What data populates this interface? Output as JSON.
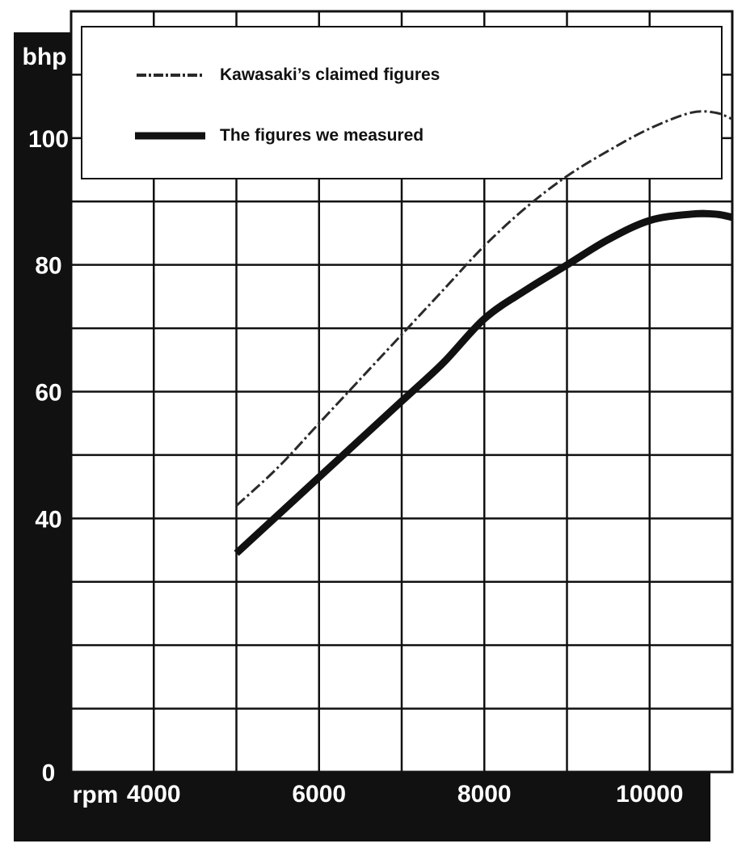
{
  "chart_data": {
    "type": "line",
    "xlabel": "rpm",
    "ylabel": "bhp",
    "xlim": [
      3000,
      11000
    ],
    "ylim": [
      0,
      120
    ],
    "x_ticks": [
      4000,
      6000,
      8000,
      10000
    ],
    "x_tick_labels": [
      "4000",
      "6000",
      "8000",
      "10000"
    ],
    "y_ticks": [
      0,
      40,
      60,
      80,
      100
    ],
    "y_tick_labels": [
      "0",
      "40",
      "60",
      "80",
      "100"
    ],
    "grid": true,
    "legend_position": "top",
    "series": [
      {
        "name": "Kawasaki’s claimed figures",
        "style": "dashed",
        "color": "#2a2a2a",
        "x": [
          5000,
          5500,
          6000,
          6500,
          7000,
          7500,
          8000,
          8500,
          9000,
          9500,
          10000,
          10500,
          10800,
          11000
        ],
        "y": [
          42,
          48,
          55,
          62,
          69,
          76,
          83,
          89,
          94,
          98,
          101.5,
          104,
          104,
          103
        ]
      },
      {
        "name": "The figures we measured",
        "style": "solid",
        "color": "#111111",
        "x": [
          5000,
          5500,
          6000,
          6500,
          7000,
          7500,
          8000,
          8500,
          9000,
          9500,
          10000,
          10500,
          10800,
          11000
        ],
        "y": [
          34.5,
          40.5,
          46.5,
          52.5,
          58.5,
          64.5,
          71.5,
          76,
          80,
          84,
          87,
          88,
          88,
          87.5
        ]
      }
    ]
  },
  "colors": {
    "frame": "#111111",
    "grid": "#111111",
    "background": "#ffffff"
  }
}
